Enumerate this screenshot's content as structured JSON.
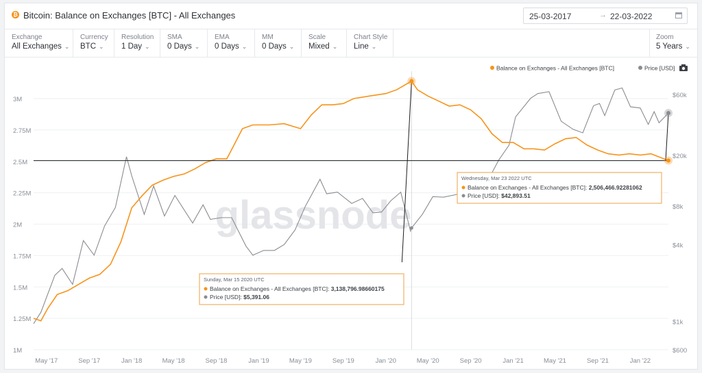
{
  "header": {
    "coin_glyph": "₿",
    "title": "Bitcoin: Balance on Exchanges [BTC] - All Exchanges",
    "date_from": "25-03-2017",
    "date_arrow": "→",
    "date_to": "22-03-2022"
  },
  "controls": [
    {
      "label": "Exchange",
      "value": "All Exchanges"
    },
    {
      "label": "Currency",
      "value": "BTC"
    },
    {
      "label": "Resolution",
      "value": "1 Day"
    },
    {
      "label": "SMA",
      "value": "0 Days"
    },
    {
      "label": "EMA",
      "value": "0 Days"
    },
    {
      "label": "MM",
      "value": "0 Days"
    },
    {
      "label": "Scale",
      "value": "Mixed"
    },
    {
      "label": "Chart Style",
      "value": "Line"
    }
  ],
  "zoom": {
    "label": "Zoom",
    "value": "5 Years"
  },
  "watermark": "glassnode",
  "colors": {
    "balance": "#f7931a",
    "price": "#8a8c90",
    "crosshair": "#1c1c1c",
    "tooltip_border": "#f0b163"
  },
  "chart_data": {
    "type": "line",
    "x_ticks": [
      "May '17",
      "Sep '17",
      "Jan '18",
      "May '18",
      "Sep '18",
      "Jan '19",
      "May '19",
      "Sep '19",
      "Jan '20",
      "May '20",
      "Sep '20",
      "Jan '21",
      "May '21",
      "Sep '21",
      "Jan '22"
    ],
    "y_left_ticks": [
      "3M",
      "2.75M",
      "2.5M",
      "2.25M",
      "2M",
      "1.75M",
      "1.5M",
      "1.25M",
      "1M"
    ],
    "y_left_range": [
      1000000,
      3000000
    ],
    "y_right_ticks": [
      "$60k",
      "$20k",
      "$8k",
      "$4k",
      "$1k",
      "$600"
    ],
    "y_right_scale": "log",
    "y_right_range": [
      600,
      60000
    ],
    "legend": [
      {
        "name": "Balance on Exchanges - All Exchanges [BTC]",
        "color": "#f7931a"
      },
      {
        "name": "Price [USD]",
        "color": "#8a8c90"
      }
    ],
    "legend_position": "top-right",
    "series": [
      {
        "name": "Balance on Exchanges - All Exchanges [BTC]",
        "axis": "left",
        "points": [
          [
            "2017-03-25",
            1250000
          ],
          [
            "2017-04-15",
            1230000
          ],
          [
            "2017-05-05",
            1330000
          ],
          [
            "2017-06-01",
            1440000
          ],
          [
            "2017-07-01",
            1470000
          ],
          [
            "2017-08-01",
            1520000
          ],
          [
            "2017-09-01",
            1570000
          ],
          [
            "2017-10-01",
            1600000
          ],
          [
            "2017-11-01",
            1680000
          ],
          [
            "2017-12-01",
            1860000
          ],
          [
            "2018-01-01",
            2130000
          ],
          [
            "2018-02-01",
            2230000
          ],
          [
            "2018-03-01",
            2310000
          ],
          [
            "2018-04-01",
            2350000
          ],
          [
            "2018-05-01",
            2380000
          ],
          [
            "2018-06-01",
            2400000
          ],
          [
            "2018-07-01",
            2440000
          ],
          [
            "2018-08-01",
            2490000
          ],
          [
            "2018-09-01",
            2520000
          ],
          [
            "2018-10-01",
            2520000
          ],
          [
            "2018-10-20",
            2620000
          ],
          [
            "2018-11-15",
            2760000
          ],
          [
            "2018-12-15",
            2790000
          ],
          [
            "2019-02-01",
            2790000
          ],
          [
            "2019-03-15",
            2800000
          ],
          [
            "2019-05-01",
            2760000
          ],
          [
            "2019-06-01",
            2870000
          ],
          [
            "2019-07-01",
            2950000
          ],
          [
            "2019-08-01",
            2950000
          ],
          [
            "2019-09-01",
            2960000
          ],
          [
            "2019-10-01",
            3000000
          ],
          [
            "2019-11-15",
            3020000
          ],
          [
            "2020-01-01",
            3040000
          ],
          [
            "2020-02-01",
            3070000
          ],
          [
            "2020-03-15",
            3138797
          ],
          [
            "2020-04-01",
            3070000
          ],
          [
            "2020-05-01",
            3020000
          ],
          [
            "2020-06-01",
            2980000
          ],
          [
            "2020-07-01",
            2940000
          ],
          [
            "2020-08-01",
            2950000
          ],
          [
            "2020-09-01",
            2910000
          ],
          [
            "2020-10-01",
            2840000
          ],
          [
            "2020-11-01",
            2720000
          ],
          [
            "2020-12-01",
            2650000
          ],
          [
            "2021-01-01",
            2650000
          ],
          [
            "2021-02-01",
            2600000
          ],
          [
            "2021-03-01",
            2600000
          ],
          [
            "2021-04-01",
            2590000
          ],
          [
            "2021-05-01",
            2640000
          ],
          [
            "2021-06-01",
            2680000
          ],
          [
            "2021-07-01",
            2690000
          ],
          [
            "2021-08-01",
            2630000
          ],
          [
            "2021-09-01",
            2590000
          ],
          [
            "2021-10-01",
            2560000
          ],
          [
            "2021-11-01",
            2550000
          ],
          [
            "2021-12-01",
            2560000
          ],
          [
            "2022-01-01",
            2550000
          ],
          [
            "2022-02-01",
            2560000
          ],
          [
            "2022-03-01",
            2530000
          ],
          [
            "2022-03-23",
            2506467
          ]
        ]
      },
      {
        "name": "Price [USD]",
        "axis": "right",
        "points": [
          [
            "2017-03-25",
            960
          ],
          [
            "2017-04-15",
            1180
          ],
          [
            "2017-05-25",
            2300
          ],
          [
            "2017-06-15",
            2600
          ],
          [
            "2017-07-15",
            1950
          ],
          [
            "2017-08-15",
            4300
          ],
          [
            "2017-09-15",
            3300
          ],
          [
            "2017-10-15",
            5600
          ],
          [
            "2017-11-15",
            7800
          ],
          [
            "2017-12-17",
            19500
          ],
          [
            "2018-01-01",
            13800
          ],
          [
            "2018-02-06",
            6900
          ],
          [
            "2018-03-05",
            11500
          ],
          [
            "2018-04-05",
            6700
          ],
          [
            "2018-05-05",
            9700
          ],
          [
            "2018-06-25",
            5900
          ],
          [
            "2018-07-25",
            8200
          ],
          [
            "2018-08-15",
            6300
          ],
          [
            "2018-09-15",
            6500
          ],
          [
            "2018-10-15",
            6500
          ],
          [
            "2018-11-25",
            3900
          ],
          [
            "2018-12-15",
            3300
          ],
          [
            "2019-01-15",
            3600
          ],
          [
            "2019-02-15",
            3600
          ],
          [
            "2019-03-15",
            4000
          ],
          [
            "2019-04-15",
            5200
          ],
          [
            "2019-05-15",
            8000
          ],
          [
            "2019-06-26",
            13000
          ],
          [
            "2019-07-15",
            10000
          ],
          [
            "2019-08-15",
            10300
          ],
          [
            "2019-09-25",
            8400
          ],
          [
            "2019-10-26",
            9200
          ],
          [
            "2019-11-25",
            7100
          ],
          [
            "2019-12-20",
            7200
          ],
          [
            "2020-01-15",
            8800
          ],
          [
            "2020-02-13",
            10300
          ],
          [
            "2020-03-12",
            5100
          ],
          [
            "2020-03-15",
            5391
          ],
          [
            "2020-04-15",
            6900
          ],
          [
            "2020-05-15",
            9500
          ],
          [
            "2020-06-15",
            9400
          ],
          [
            "2020-07-25",
            9900
          ],
          [
            "2020-08-17",
            12000
          ],
          [
            "2020-09-15",
            10800
          ],
          [
            "2020-10-21",
            12800
          ],
          [
            "2020-11-20",
            18300
          ],
          [
            "2020-12-20",
            24000
          ],
          [
            "2021-01-08",
            40000
          ],
          [
            "2021-02-20",
            56000
          ],
          [
            "2021-03-13",
            61000
          ],
          [
            "2021-04-14",
            63000
          ],
          [
            "2021-05-19",
            37000
          ],
          [
            "2021-06-22",
            32000
          ],
          [
            "2021-07-20",
            30000
          ],
          [
            "2021-08-20",
            49000
          ],
          [
            "2021-09-06",
            51000
          ],
          [
            "2021-09-21",
            41000
          ],
          [
            "2021-10-20",
            65000
          ],
          [
            "2021-11-10",
            67500
          ],
          [
            "2021-12-04",
            48000
          ],
          [
            "2022-01-01",
            47000
          ],
          [
            "2022-01-24",
            35000
          ],
          [
            "2022-02-10",
            44000
          ],
          [
            "2022-02-24",
            36000
          ],
          [
            "2022-03-23",
            42894
          ]
        ]
      }
    ],
    "tooltips": [
      {
        "date": "Sunday, Mar 15 2020 UTC",
        "balance_label": "Balance on Exchanges - All Exchanges [BTC]:",
        "balance_value": "3,138,796.98660175",
        "price_label": "Price [USD]:",
        "price_value": "$5,391.06"
      },
      {
        "date": "Wednesday, Mar 23 2022 UTC",
        "balance_label": "Balance on Exchanges - All Exchanges [BTC]:",
        "balance_value": "2,506,466.92281062",
        "price_label": "Price [USD]:",
        "price_value": "$42,893.51"
      }
    ]
  }
}
